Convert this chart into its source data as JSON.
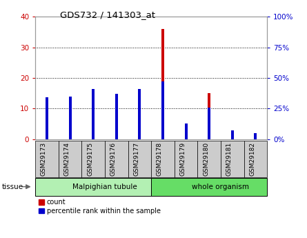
{
  "title": "GDS732 / 141303_at",
  "categories": [
    "GSM29173",
    "GSM29174",
    "GSM29175",
    "GSM29176",
    "GSM29177",
    "GSM29178",
    "GSM29179",
    "GSM29180",
    "GSM29181",
    "GSM29182"
  ],
  "count_values": [
    12,
    12,
    16,
    14,
    16,
    36,
    1,
    15,
    2,
    1
  ],
  "percentile_values": [
    34,
    35,
    41,
    37,
    41,
    47,
    13,
    26,
    7,
    5
  ],
  "tissue_groups": [
    {
      "label": "Malpighian tubule",
      "start": 0,
      "end": 5,
      "color": "#b3f0b3"
    },
    {
      "label": "whole organism",
      "start": 5,
      "end": 10,
      "color": "#66dd66"
    }
  ],
  "left_ylim": [
    0,
    40
  ],
  "right_ylim": [
    0,
    100
  ],
  "left_yticks": [
    0,
    10,
    20,
    30,
    40
  ],
  "right_yticks": [
    0,
    25,
    50,
    75,
    100
  ],
  "right_yticklabels": [
    "0%",
    "25%",
    "50%",
    "75%",
    "100%"
  ],
  "left_color": "#cc0000",
  "right_color": "#0000cc",
  "red_bar_width": 0.12,
  "blue_bar_width": 0.12,
  "xtick_box_color": "#cccccc",
  "legend_count_color": "#cc0000",
  "legend_pct_color": "#0000cc"
}
